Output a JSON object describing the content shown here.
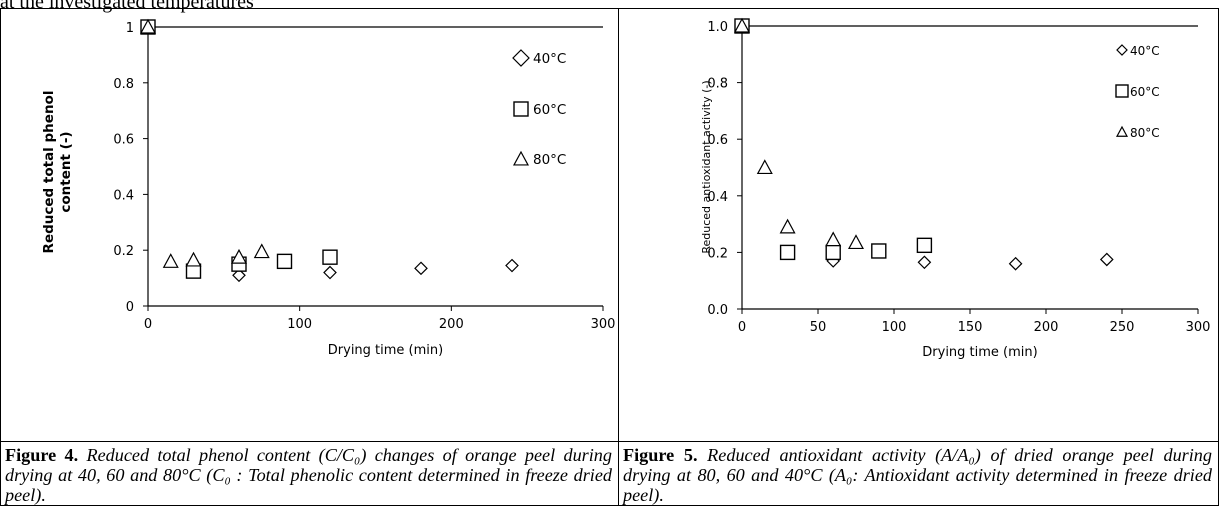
{
  "top_text": "at the investigated temperatures",
  "figures": [
    {
      "caption_label": "Figure 4.",
      "caption_text": "Reduced total phenol content (C/C₀) changes of orange peel during drying at 40, 60 and 80°C (C₀ : Total phenolic content determined in freeze dried peel)."
    },
    {
      "caption_label": "Figure 5.",
      "caption_text": "Reduced antioxidant activity (A/A₀) of dried orange peel during drying at 80, 60 and 40°C (A₀: Antioxidant activity determined in freeze dried peel)."
    }
  ],
  "chart_data": [
    {
      "type": "scatter",
      "xlabel": "Drying time (min)",
      "ylabel": "Reduced total phenol content (-)",
      "xlim": [
        0,
        300
      ],
      "ylim": [
        0,
        1
      ],
      "x_ticks": [
        "0",
        "100",
        "200",
        "300"
      ],
      "y_ticks": [
        "0",
        "0.2",
        "0.4",
        "0.6",
        "0.8",
        "1"
      ],
      "grid": false,
      "legend_position": "right",
      "series": [
        {
          "name": "40°C",
          "marker": "diamond",
          "x": [
            0,
            60,
            120,
            180,
            240
          ],
          "y": [
            1.0,
            0.11,
            0.12,
            0.135,
            0.145
          ]
        },
        {
          "name": "60°C",
          "marker": "square",
          "x": [
            0,
            30,
            60,
            90,
            120
          ],
          "y": [
            1.0,
            0.125,
            0.15,
            0.16,
            0.175
          ]
        },
        {
          "name": "80°C",
          "marker": "triangle",
          "x": [
            0,
            15,
            30,
            60,
            75
          ],
          "y": [
            1.0,
            0.16,
            0.165,
            0.175,
            0.195
          ]
        }
      ]
    },
    {
      "type": "scatter",
      "xlabel": "Drying time (min)",
      "ylabel": "Reduced antioxidant activity (-)",
      "xlim": [
        0,
        300
      ],
      "ylim": [
        0,
        1
      ],
      "x_ticks": [
        "0",
        "50",
        "100",
        "150",
        "200",
        "250",
        "300"
      ],
      "y_ticks": [
        "0.0",
        "0.2",
        "0.4",
        "0.6",
        "0.8",
        "1.0"
      ],
      "grid": false,
      "legend_position": "right",
      "series": [
        {
          "name": "40°C",
          "marker": "diamond",
          "x": [
            0,
            60,
            120,
            180,
            240
          ],
          "y": [
            1.0,
            0.17,
            0.165,
            0.16,
            0.175
          ]
        },
        {
          "name": "60°C",
          "marker": "square",
          "x": [
            0,
            30,
            60,
            90,
            120
          ],
          "y": [
            1.0,
            0.2,
            0.2,
            0.205,
            0.225
          ]
        },
        {
          "name": "80°C",
          "marker": "triangle",
          "x": [
            0,
            15,
            30,
            60,
            75
          ],
          "y": [
            1.0,
            0.5,
            0.29,
            0.245,
            0.235
          ]
        }
      ]
    }
  ]
}
